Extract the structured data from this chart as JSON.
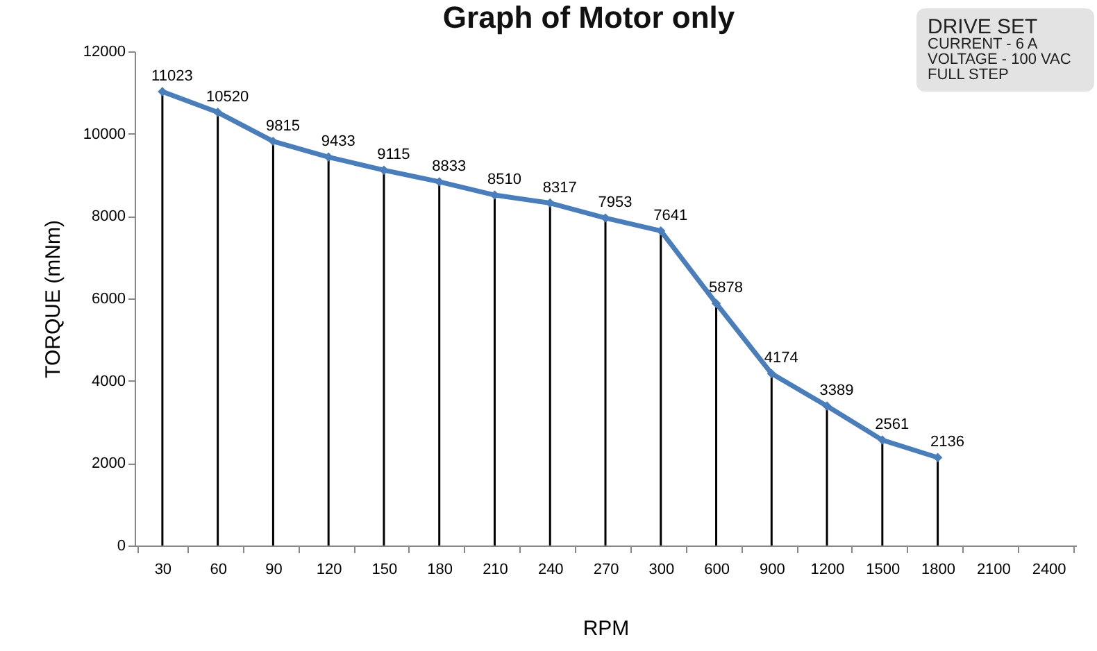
{
  "chart_data": {
    "type": "line",
    "title": "Graph of Motor only",
    "xlabel": "RPM",
    "ylabel": "TORQUE (mNm)",
    "categories": [
      "30",
      "60",
      "90",
      "120",
      "150",
      "180",
      "210",
      "240",
      "270",
      "300",
      "600",
      "900",
      "1200",
      "1500",
      "1800",
      "2100",
      "2400"
    ],
    "series": [
      {
        "type": "bar",
        "color": "#000000",
        "values": [
          11023,
          10520,
          9815,
          9433,
          9115,
          8833,
          8510,
          8317,
          7953,
          7641,
          5878,
          4174,
          3389,
          2561,
          2136,
          null,
          null
        ]
      },
      {
        "color": "#4a7ebb",
        "values": [
          11023,
          10520,
          9815,
          9433,
          9115,
          8833,
          8510,
          8317,
          7953,
          7641,
          5878,
          4174,
          3389,
          2561,
          2136,
          null,
          null
        ],
        "value_labels": [
          "11023",
          "10520",
          "9815",
          "9433",
          "9115",
          "8833",
          "8510",
          "8317",
          "7953",
          "7641",
          "5878",
          "4174",
          "3389",
          "2561",
          "2136",
          null,
          null
        ]
      }
    ],
    "ylim": [
      0,
      12000
    ],
    "yticks": [
      0,
      2000,
      4000,
      6000,
      8000,
      10000,
      12000
    ],
    "marker": "diamond",
    "annotations": [
      "DRIVE SET",
      "CURRENT - 6 A",
      "VOLTAGE - 100 VAC",
      "FULL STEP"
    ]
  }
}
